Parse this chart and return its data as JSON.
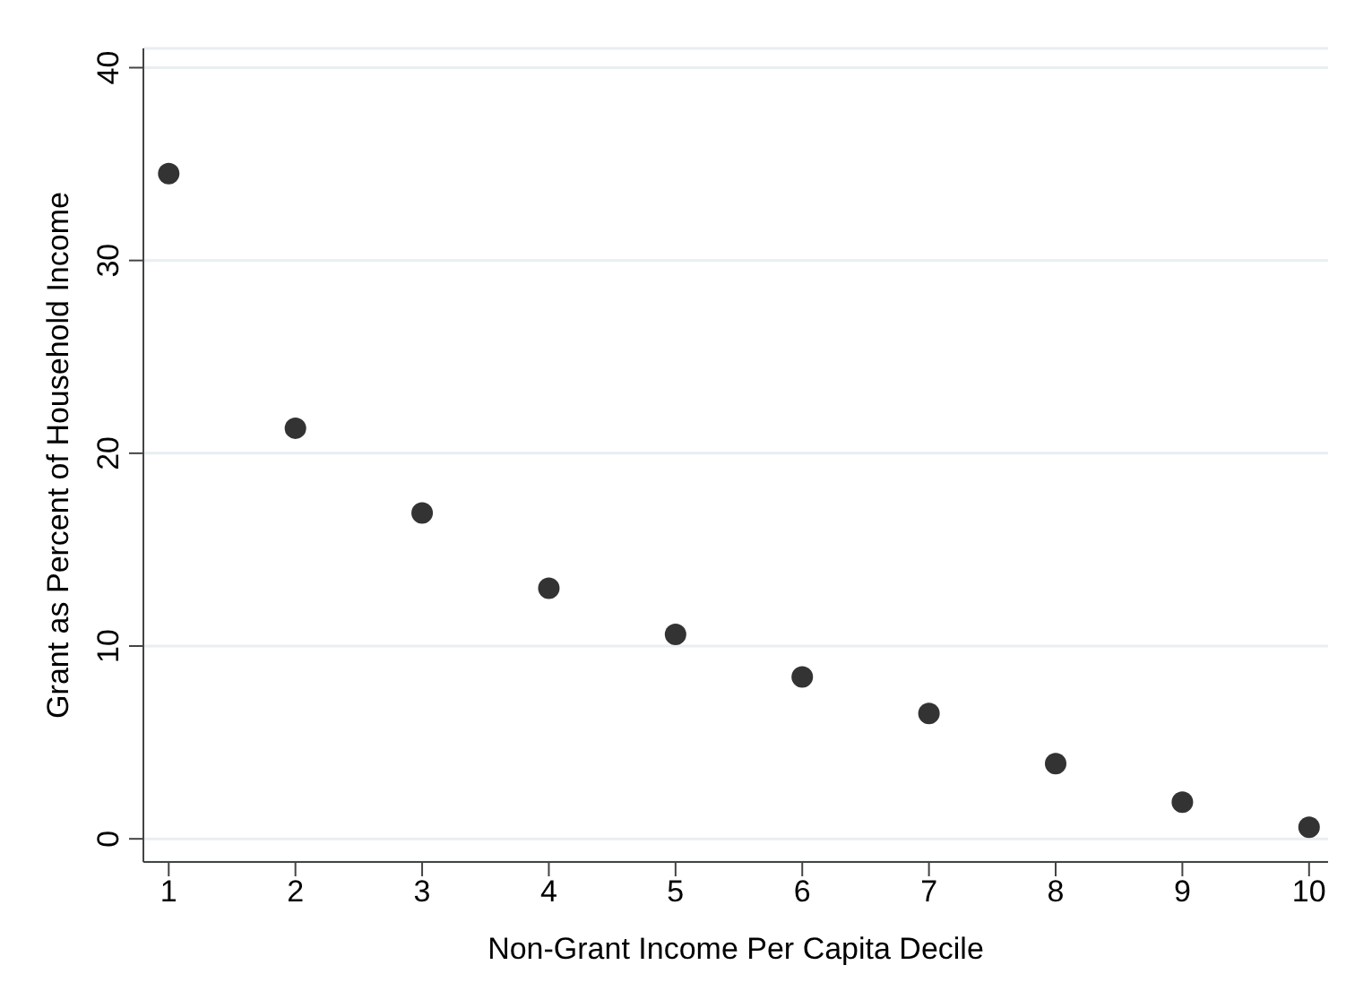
{
  "chart_data": {
    "type": "scatter",
    "xlabel": "Non-Grant Income Per Capita Decile",
    "ylabel": "Grant as Percent of Household Income",
    "x": [
      1,
      2,
      3,
      4,
      5,
      6,
      7,
      8,
      9,
      10
    ],
    "series": [
      {
        "color": "#333333",
        "values": [
          34.5,
          21.3,
          16.9,
          13.0,
          10.6,
          8.4,
          6.5,
          3.9,
          1.9,
          0.6
        ]
      }
    ],
    "xlim": [
      0.8,
      10.15
    ],
    "xticks": [
      1,
      2,
      3,
      4,
      5,
      6,
      7,
      8,
      9,
      10
    ],
    "ylim": [
      -1.2,
      41
    ],
    "yticks": [
      0,
      10,
      20,
      30,
      40
    ],
    "grid": "y",
    "marker": "circle",
    "legend": false
  }
}
